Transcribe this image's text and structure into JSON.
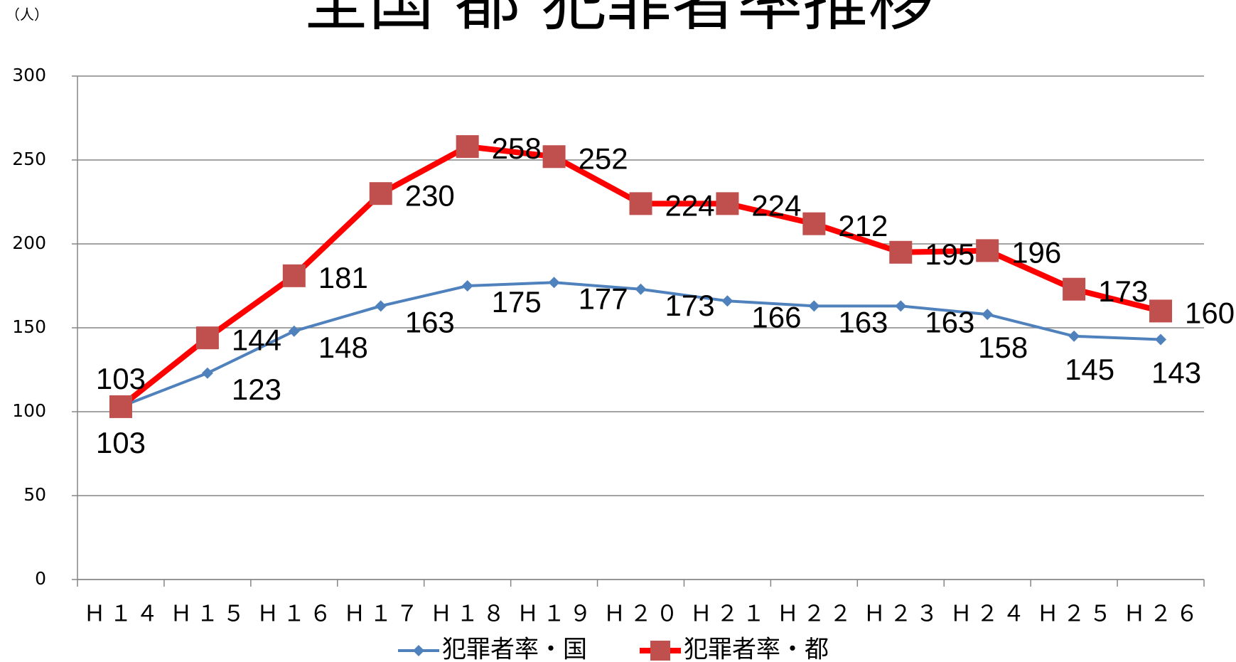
{
  "chart_data": {
    "type": "line",
    "title": "全国 都 犯罪者率推移",
    "unit_label": "（人）",
    "categories": [
      "Ｈ１４",
      "Ｈ１５",
      "Ｈ１６",
      "Ｈ１７",
      "Ｈ１８",
      "Ｈ１９",
      "Ｈ２０",
      "Ｈ２１",
      "Ｈ２２",
      "Ｈ２３",
      "Ｈ２４",
      "Ｈ２５",
      "Ｈ２６"
    ],
    "series": [
      {
        "name": "犯罪者率・国",
        "color": "#4f81bd",
        "marker": "diamond",
        "values": [
          103,
          123,
          148,
          163,
          175,
          177,
          173,
          166,
          163,
          163,
          158,
          145,
          143
        ]
      },
      {
        "name": "犯罪者率・都",
        "color": "#ff0000",
        "marker_color": "#c0504d",
        "marker": "square",
        "values": [
          103,
          144,
          181,
          230,
          258,
          252,
          224,
          224,
          212,
          195,
          196,
          173,
          160
        ]
      }
    ],
    "ylim": [
      0,
      300
    ],
    "yticks": [
      0,
      50,
      100,
      150,
      200,
      250,
      300
    ],
    "grid": true,
    "legend": "bottom"
  }
}
